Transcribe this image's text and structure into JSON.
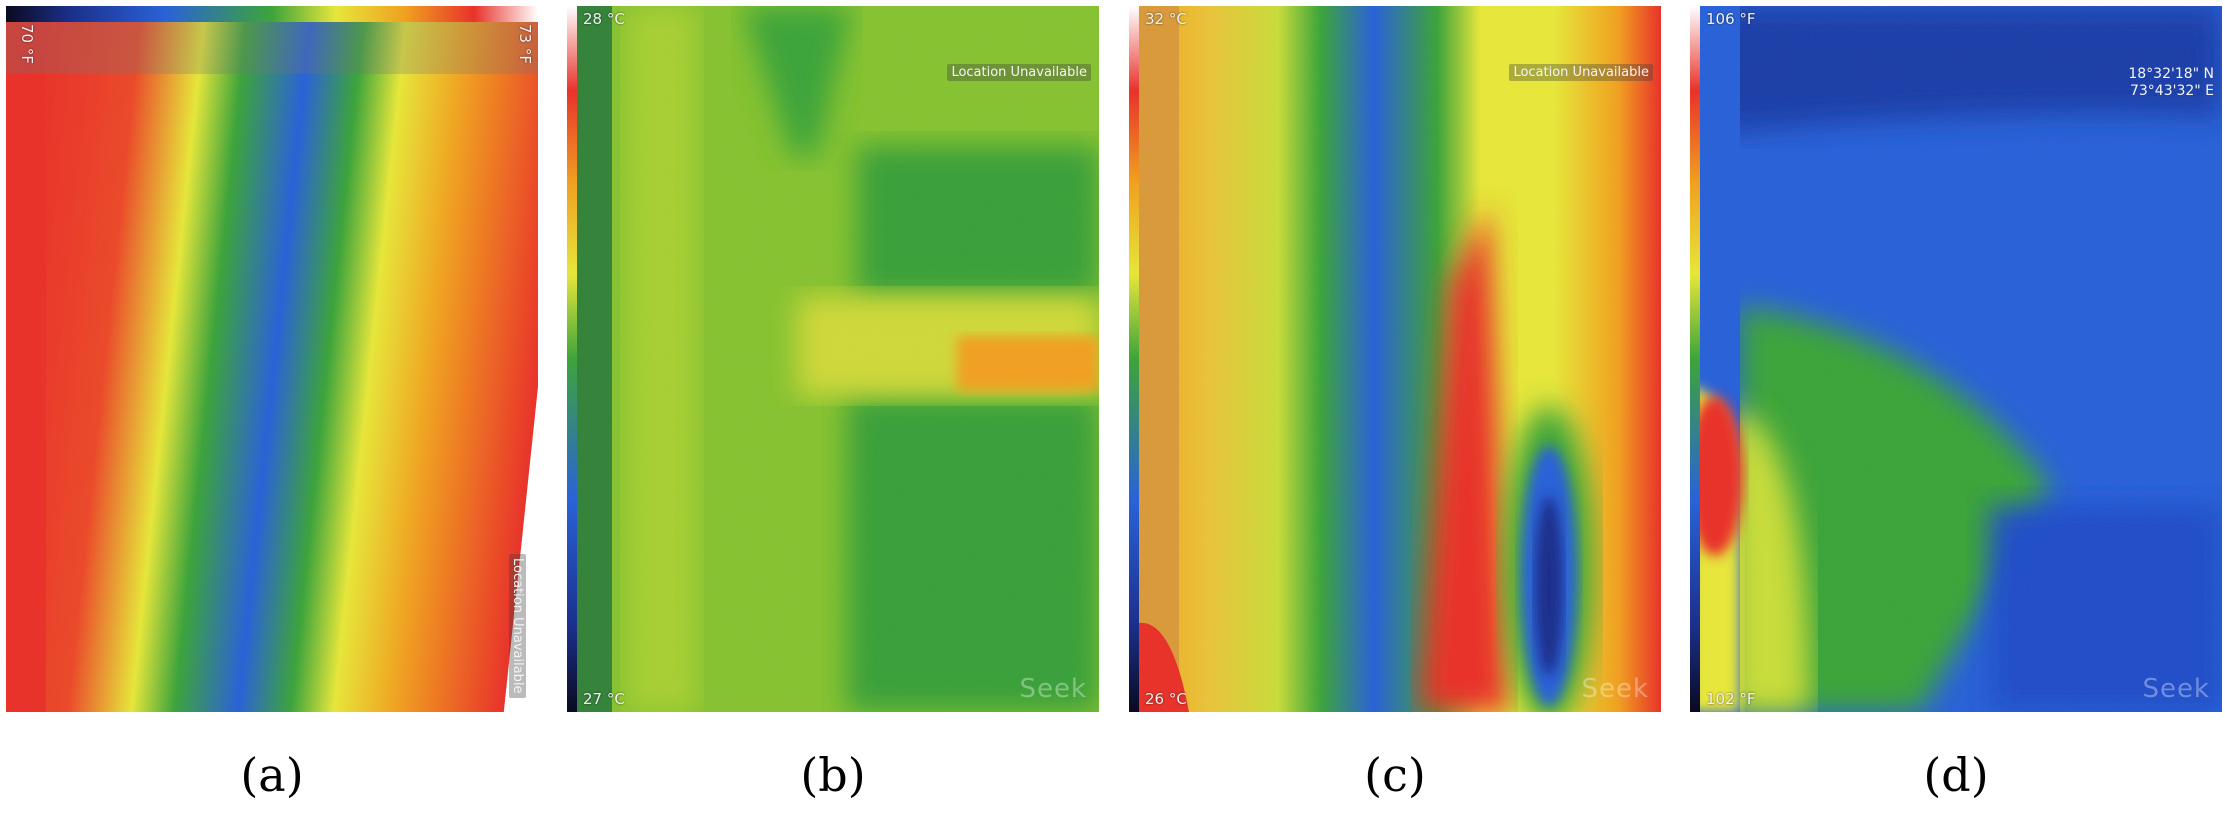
{
  "panels": [
    {
      "caption": "(a)",
      "range_high": "73 °F",
      "range_low": "70 °F",
      "location": "Location Unavailable"
    },
    {
      "caption": "(b)",
      "range_high": "28 °C",
      "range_low": "27 °C",
      "location": "Location Unavailable",
      "brand": "Seek"
    },
    {
      "caption": "(c)",
      "range_high": "32 °C",
      "range_low": "26 °C",
      "location": "Location Unavailable",
      "brand": "Seek"
    },
    {
      "caption": "(d)",
      "range_high": "106 °F",
      "range_low": "102 °F",
      "coord_lat": "18°32'18\" N",
      "coord_lon": "73°43'32\" E",
      "brand": "Seek"
    }
  ],
  "palette": {
    "red": "#e8322a",
    "orange": "#f0a020",
    "yellow": "#e6e63a",
    "green": "#3da43a",
    "blue": "#2a62d8",
    "navy": "#1b2f8a"
  }
}
